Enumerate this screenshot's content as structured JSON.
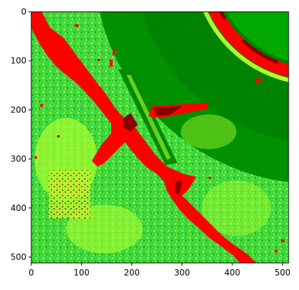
{
  "chart_data": {
    "type": "heatmap",
    "title": "",
    "xlabel": "",
    "ylabel": "",
    "xlim": [
      0,
      512
    ],
    "ylim": [
      512,
      0
    ],
    "x_ticks": [
      "0",
      "100",
      "200",
      "300",
      "400",
      "500"
    ],
    "y_ticks": [
      "0",
      "100",
      "200",
      "300",
      "400",
      "500"
    ],
    "grid": false,
    "colormap": {
      "dark_red": "#8b0000",
      "red": "#ff0000",
      "bright_green": "#00e000",
      "green": "#00a800",
      "dark_green": "#007800",
      "yellow_green": "#adff2f"
    }
  }
}
